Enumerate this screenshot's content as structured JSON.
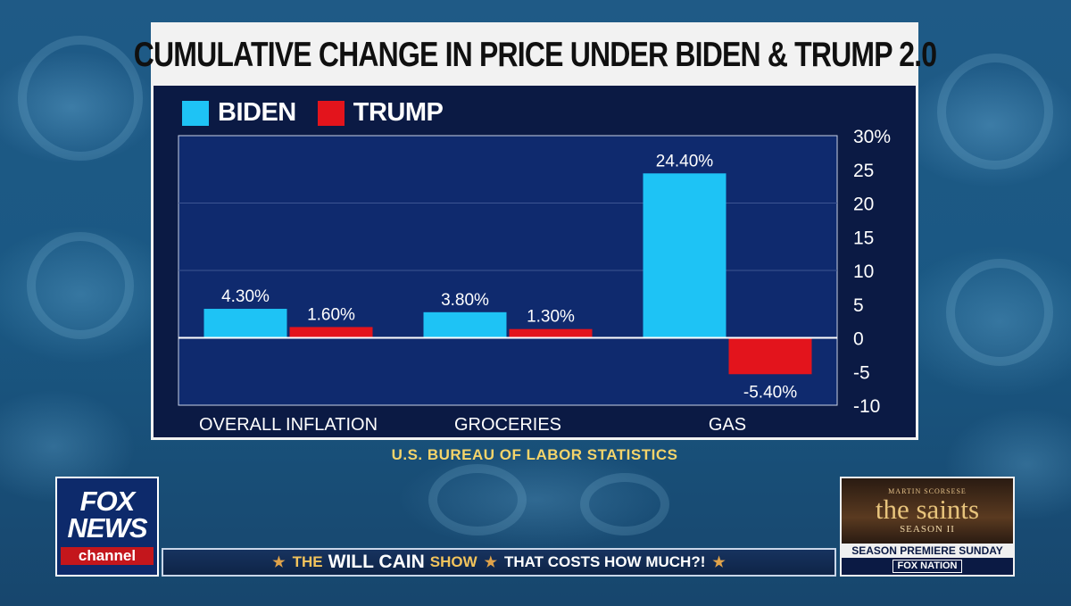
{
  "chart_data": {
    "type": "bar",
    "title": "CUMULATIVE CHANGE IN PRICE UNDER BIDEN & TRUMP 2.0",
    "categories": [
      "OVERALL INFLATION",
      "GROCERIES",
      "GAS"
    ],
    "series": [
      {
        "name": "BIDEN",
        "color": "#1ec3f5",
        "values": [
          4.3,
          3.8,
          24.4
        ],
        "labels": [
          "4.30%",
          "3.80%",
          "24.40%"
        ]
      },
      {
        "name": "TRUMP",
        "color": "#e3141c",
        "values": [
          1.6,
          1.3,
          -5.4
        ],
        "labels": [
          "1.60%",
          "1.30%",
          "-5.40%"
        ]
      }
    ],
    "ylim": [
      -10,
      30
    ],
    "y_ticks": [
      30,
      25,
      20,
      15,
      10,
      5,
      0,
      -5,
      -10
    ],
    "y_tick_labels": [
      "30%",
      "25",
      "20",
      "15",
      "10",
      "5",
      "0",
      "-5",
      "-10"
    ],
    "gridlines": [
      10,
      20
    ],
    "y_axis_side": "right",
    "legend_position": "top-left",
    "source": "U.S. BUREAU OF LABOR STATISTICS",
    "xlabel": "",
    "ylabel": ""
  },
  "branding": {
    "network_line1": "FOX",
    "network_line2": "NEWS",
    "network_line3": "channel",
    "ticker": {
      "show_prefix": "THE",
      "show_name": "WILL CAIN",
      "show_suffix": "SHOW",
      "tagline": "THAT COSTS HOW MUCH?!",
      "star": "★"
    },
    "promo": {
      "presenter": "MARTIN SCORSESE",
      "title": "the saints",
      "season": "SEASON II",
      "premiere": "SEASON PREMIERE SUNDAY",
      "network": "FOX NATION"
    }
  }
}
